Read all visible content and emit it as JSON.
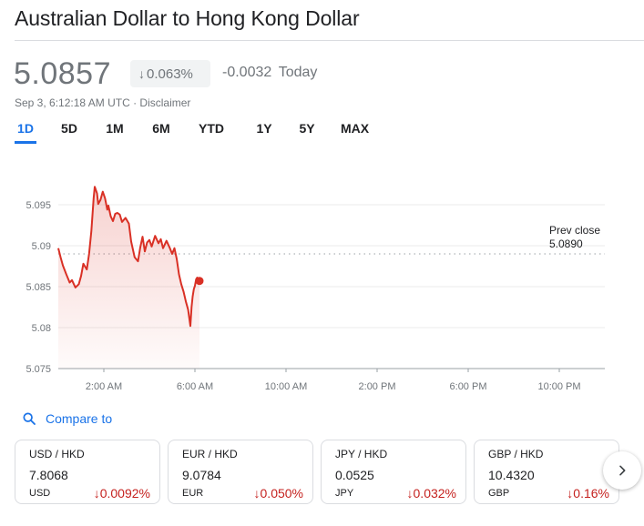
{
  "header": {
    "title": "Australian Dollar to Hong Kong Dollar"
  },
  "quote": {
    "price": "5.0857",
    "change_pct": "0.063%",
    "change_abs": "-0.0032",
    "change_period": "Today",
    "timestamp": "Sep 3, 6:12:18 AM UTC",
    "separator": "·",
    "disclaimer": "Disclaimer",
    "direction": "down",
    "muted_color": "#70757a"
  },
  "ranges": [
    "1D",
    "5D",
    "1M",
    "6M",
    "YTD",
    "1Y",
    "5Y",
    "MAX"
  ],
  "active_range": "1D",
  "chart_data": {
    "type": "line",
    "x_unit": "hours since midnight",
    "ylim": [
      5.075,
      5.097
    ],
    "yticks": [
      5.075,
      5.08,
      5.085,
      5.09,
      5.095
    ],
    "ytick_labels": [
      "5.075",
      "5.08",
      "5.085",
      "5.09",
      "5.095"
    ],
    "xlim": [
      0,
      24
    ],
    "xticks": [
      2,
      6,
      10,
      14,
      18,
      22
    ],
    "xtick_labels": [
      "2:00 AM",
      "6:00 AM",
      "10:00 AM",
      "2:00 PM",
      "6:00 PM",
      "10:00 PM"
    ],
    "prev_close_label": "Prev close",
    "prev_close_value": "5.0890",
    "prev_close": 5.089,
    "line_color": "#d93025",
    "series": [
      {
        "x": [
          0.0,
          0.1,
          0.2,
          0.35,
          0.5,
          0.6,
          0.75,
          0.9,
          1.0,
          1.1,
          1.25,
          1.35,
          1.45,
          1.55,
          1.6,
          1.7,
          1.75,
          1.85,
          1.95,
          2.05,
          2.15,
          2.2,
          2.3,
          2.4,
          2.5,
          2.6,
          2.7,
          2.8,
          2.95,
          3.1,
          3.2,
          3.35,
          3.5,
          3.6,
          3.7,
          3.8,
          3.9,
          4.0,
          4.1,
          4.25,
          4.4,
          4.5,
          4.6,
          4.75,
          4.9,
          5.0,
          5.1,
          5.2,
          5.3,
          5.4,
          5.5,
          5.6,
          5.7,
          5.8,
          5.85,
          5.9,
          5.95,
          6.0,
          6.05,
          6.1,
          6.2
        ],
        "y": [
          5.0897,
          5.0886,
          5.0876,
          5.0865,
          5.0855,
          5.0858,
          5.0849,
          5.0853,
          5.0863,
          5.0878,
          5.0871,
          5.089,
          5.0918,
          5.0958,
          5.0972,
          5.0964,
          5.0951,
          5.0956,
          5.0966,
          5.0958,
          5.0944,
          5.0949,
          5.0936,
          5.093,
          5.0939,
          5.094,
          5.0938,
          5.0929,
          5.0934,
          5.0927,
          5.0905,
          5.0886,
          5.0881,
          5.0898,
          5.0911,
          5.0893,
          5.0904,
          5.0907,
          5.0899,
          5.0912,
          5.0903,
          5.0908,
          5.0897,
          5.0906,
          5.0897,
          5.089,
          5.0897,
          5.0884,
          5.0865,
          5.0853,
          5.0844,
          5.0832,
          5.0822,
          5.0802,
          5.0825,
          5.0838,
          5.0847,
          5.0851,
          5.0859,
          5.0861,
          5.0857
        ]
      }
    ]
  },
  "compare": {
    "label": "Compare to"
  },
  "cards": [
    {
      "pair": "USD / HKD",
      "rate": "7.8068",
      "currency": "USD",
      "change": "0.0092%"
    },
    {
      "pair": "EUR / HKD",
      "rate": "9.0784",
      "currency": "EUR",
      "change": "0.050%"
    },
    {
      "pair": "JPY / HKD",
      "rate": "0.0525",
      "currency": "JPY",
      "change": "0.032%"
    },
    {
      "pair": "GBP / HKD",
      "rate": "10.4320",
      "currency": "GBP",
      "change": "0.16%"
    }
  ]
}
